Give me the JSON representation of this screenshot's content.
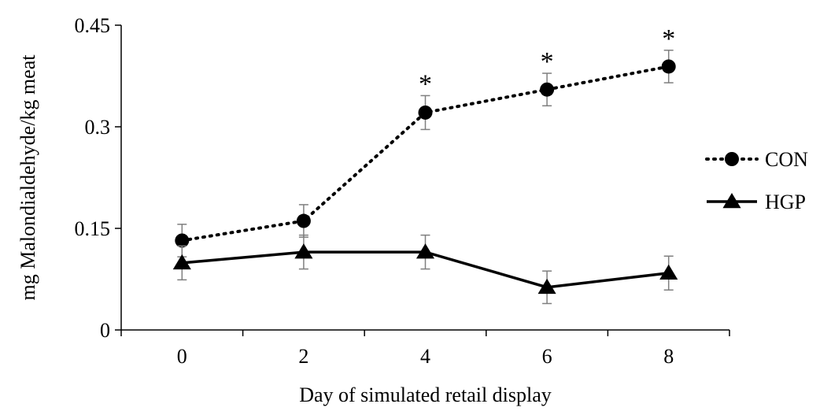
{
  "chart_data": {
    "type": "line",
    "title": "",
    "xlabel": "Day of simulated retail display",
    "ylabel": "mg Malondialdehyde/kg meat",
    "x": [
      0,
      2,
      4,
      6,
      8
    ],
    "xticks": [
      "0",
      "2",
      "4",
      "6",
      "8"
    ],
    "yticks": [
      "0",
      "0.15",
      "0.3",
      "0.45"
    ],
    "xlim": [
      -1,
      9
    ],
    "ylim": [
      0,
      0.45
    ],
    "grid": false,
    "legend_position": "right",
    "series": [
      {
        "name": "CON",
        "values": [
          0.132,
          0.161,
          0.321,
          0.355,
          0.389
        ],
        "errors": [
          0.024,
          0.024,
          0.025,
          0.024,
          0.024
        ],
        "line_style": "dotted",
        "marker": "circle",
        "color": "#000000"
      },
      {
        "name": "HGP",
        "values": [
          0.099,
          0.115,
          0.115,
          0.063,
          0.084
        ],
        "errors": [
          0.025,
          0.025,
          0.025,
          0.024,
          0.025
        ],
        "line_style": "solid",
        "marker": "triangle",
        "color": "#000000"
      }
    ],
    "annotations": [
      {
        "x": 4,
        "text": "*"
      },
      {
        "x": 6,
        "text": "*"
      },
      {
        "x": 8,
        "text": "*"
      }
    ]
  }
}
